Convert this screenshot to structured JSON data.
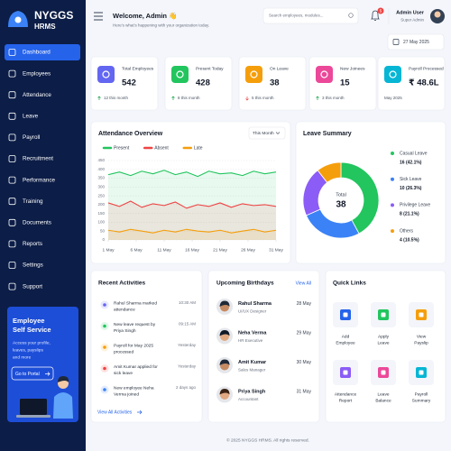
{
  "sidebar": {
    "brand": "NYGGS",
    "subbrand": "HRMS",
    "nav": [
      "Dashboard",
      "Employees",
      "Attendance",
      "Leave",
      "Payroll",
      "Recruitment",
      "Performance",
      "Training",
      "Documents",
      "Reports",
      "Settings",
      "Support"
    ],
    "promo": {
      "title_lines": [
        "Employee",
        "Self Service"
      ],
      "text_lines": [
        "Access your profile,",
        "leaves, payslips",
        "and more"
      ],
      "button": "Go to Portal"
    }
  },
  "header": {
    "welcome": "Welcome, Admin 👋",
    "subtitle": "Here's what's happening with your organization today.",
    "search": "Search employees, modules...",
    "notifications": "5",
    "user": "Admin User",
    "role": "Super Admin",
    "date": "27 May 2025"
  },
  "stats": [
    {
      "label": "Total Employees",
      "value": "542",
      "change": "12 this month"
    },
    {
      "label": "Present Today",
      "value": "428",
      "change": "8 this month"
    },
    {
      "label": "On Leave",
      "value": "38",
      "change": "5 this month"
    },
    {
      "label": "New Joinees",
      "value": "15",
      "change": "3 this month"
    },
    {
      "label": "Payroll Processed",
      "value": "₹ 48.6L",
      "change": "May 2025"
    }
  ],
  "chart_data": [
    {
      "type": "line",
      "title": "Attendance Overview",
      "control": "This Month",
      "x": [
        1,
        3,
        5,
        7,
        9,
        11,
        13,
        15,
        17,
        19,
        21,
        23,
        25,
        27,
        29,
        31
      ],
      "xlim": [
        1,
        31
      ],
      "xticks": [
        {
          "value": 1,
          "label": "1 May"
        },
        {
          "value": 6,
          "label": "6 May"
        },
        {
          "value": 11,
          "label": "11 May"
        },
        {
          "value": 16,
          "label": "16 May"
        },
        {
          "value": 21,
          "label": "21 May"
        },
        {
          "value": 26,
          "label": "26 May"
        },
        {
          "value": 31,
          "label": "31 May"
        }
      ],
      "ylim": [
        0,
        450
      ],
      "yticks": [
        0,
        50,
        100,
        150,
        200,
        250,
        300,
        350,
        400,
        450
      ],
      "grid": true,
      "series": [
        {
          "name": "Present",
          "color": "#22c55e",
          "values": [
            370,
            385,
            365,
            390,
            375,
            395,
            370,
            385,
            360,
            390,
            375,
            380,
            365,
            390,
            375,
            385
          ]
        },
        {
          "name": "Absent",
          "color": "#ef4444",
          "values": [
            210,
            190,
            220,
            185,
            205,
            195,
            215,
            180,
            200,
            190,
            210,
            185,
            205,
            195,
            200,
            190
          ]
        },
        {
          "name": "Late",
          "color": "#f59e0b",
          "values": [
            55,
            45,
            60,
            50,
            40,
            55,
            45,
            60,
            50,
            45,
            55,
            40,
            50,
            60,
            45,
            55
          ]
        }
      ]
    },
    {
      "type": "donut",
      "title": "Leave Summary",
      "center_label": "Total",
      "total": 38,
      "categories": [
        "Casual Leave",
        "Sick Leave",
        "Privilege Leave",
        "Others"
      ],
      "values": [
        16,
        10,
        8,
        4
      ],
      "value_labels": [
        "16 (42.1%)",
        "10 (26.3%)",
        "8 (21.1%)",
        "4 (10.5%)"
      ],
      "colors": [
        "#22c55e",
        "#3b82f6",
        "#8b5cf6",
        "#f59e0b"
      ]
    }
  ],
  "activities": {
    "title": "Recent Activities",
    "items": [
      {
        "lines": [
          "Rahul Sharma marked",
          "attendance"
        ],
        "time": "10:30 AM"
      },
      {
        "lines": [
          "New leave request by",
          "Priya Singh"
        ],
        "time": "09:15 AM"
      },
      {
        "lines": [
          "Payroll for May 2025",
          "processed"
        ],
        "time": "Yesterday"
      },
      {
        "lines": [
          "Amit Kumar applied for",
          "sick leave"
        ],
        "time": "Yesterday"
      },
      {
        "lines": [
          "New employee Neha",
          "Verma joined"
        ],
        "time": "2 days ago"
      }
    ],
    "link": "View All Activities"
  },
  "birthdays": {
    "title": "Upcoming Birthdays",
    "link": "View All",
    "items": [
      {
        "name": "Rahul Sharma",
        "role": "UI/UX Designer",
        "date": "28 May"
      },
      {
        "name": "Neha Verma",
        "role": "HR Executive",
        "date": "29 May"
      },
      {
        "name": "Amit Kumar",
        "role": "Sales Manager",
        "date": "30 May"
      },
      {
        "name": "Priya Singh",
        "role": "Accountant",
        "date": "31 May"
      }
    ]
  },
  "quick_links": {
    "title": "Quick Links",
    "items": [
      [
        "Add",
        "Employee"
      ],
      [
        "Apply",
        "Leave"
      ],
      [
        "View",
        "Payslip"
      ],
      [
        "Attendance",
        "Report"
      ],
      [
        "Leave",
        "Balance"
      ],
      [
        "Payroll",
        "Summary"
      ]
    ]
  },
  "footer": "© 2025 NYGGS HRMS. All rights reserved."
}
